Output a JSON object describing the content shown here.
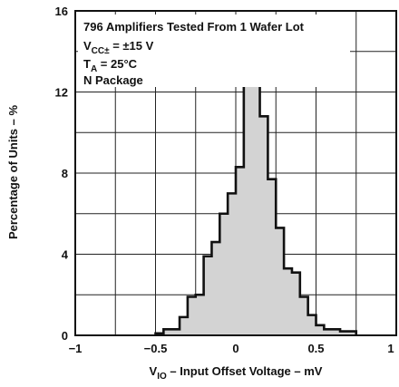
{
  "chart_data": {
    "type": "histogram",
    "xlabel": {
      "main": "V",
      "sub": "IO",
      "rest": " – Input Offset Voltage – mV"
    },
    "ylabel": "Percentage of Units – %",
    "xlim": [
      -1,
      1
    ],
    "ylim": [
      0,
      16
    ],
    "x_ticks": [
      -1,
      -0.5,
      0,
      0.5,
      1
    ],
    "x_tick_labels": [
      "−1",
      "−0.5",
      "0",
      "0.5",
      "1"
    ],
    "y_ticks": [
      0,
      4,
      8,
      12,
      16
    ],
    "y_tick_labels": [
      "0",
      "4",
      "8",
      "12",
      "16"
    ],
    "grid": true,
    "fill_color": "#d3d3d3",
    "line_color": "#111111",
    "bin_width": 0.05,
    "bins": [
      {
        "x0": -0.5,
        "value": 0.1
      },
      {
        "x0": -0.45,
        "value": 0.3
      },
      {
        "x0": -0.4,
        "value": 0.3
      },
      {
        "x0": -0.35,
        "value": 0.9
      },
      {
        "x0": -0.3,
        "value": 1.9
      },
      {
        "x0": -0.25,
        "value": 2.0
      },
      {
        "x0": -0.2,
        "value": 3.9
      },
      {
        "x0": -0.15,
        "value": 4.6
      },
      {
        "x0": -0.1,
        "value": 6.0
      },
      {
        "x0": -0.05,
        "value": 7.0
      },
      {
        "x0": 0.0,
        "value": 8.3
      },
      {
        "x0": 0.05,
        "value": 12.9
      },
      {
        "x0": 0.1,
        "value": 13.3
      },
      {
        "x0": 0.15,
        "value": 10.8
      },
      {
        "x0": 0.2,
        "value": 7.7
      },
      {
        "x0": 0.25,
        "value": 5.3
      },
      {
        "x0": 0.3,
        "value": 3.3
      },
      {
        "x0": 0.35,
        "value": 3.1
      },
      {
        "x0": 0.4,
        "value": 1.9
      },
      {
        "x0": 0.45,
        "value": 1.0
      },
      {
        "x0": 0.5,
        "value": 0.5
      },
      {
        "x0": 0.55,
        "value": 0.3
      },
      {
        "x0": 0.6,
        "value": 0.3
      },
      {
        "x0": 0.65,
        "value": 0.2
      },
      {
        "x0": 0.7,
        "value": 0.2
      }
    ],
    "annotations": {
      "line1": "796 Amplifiers Tested From 1 Wafer Lot",
      "line2": {
        "main": "V",
        "sub": "CC±",
        "rest": " = ±15 V"
      },
      "line3": {
        "main": "T",
        "sub": "A",
        "rest": " = 25°C"
      },
      "line4": "N Package"
    }
  }
}
